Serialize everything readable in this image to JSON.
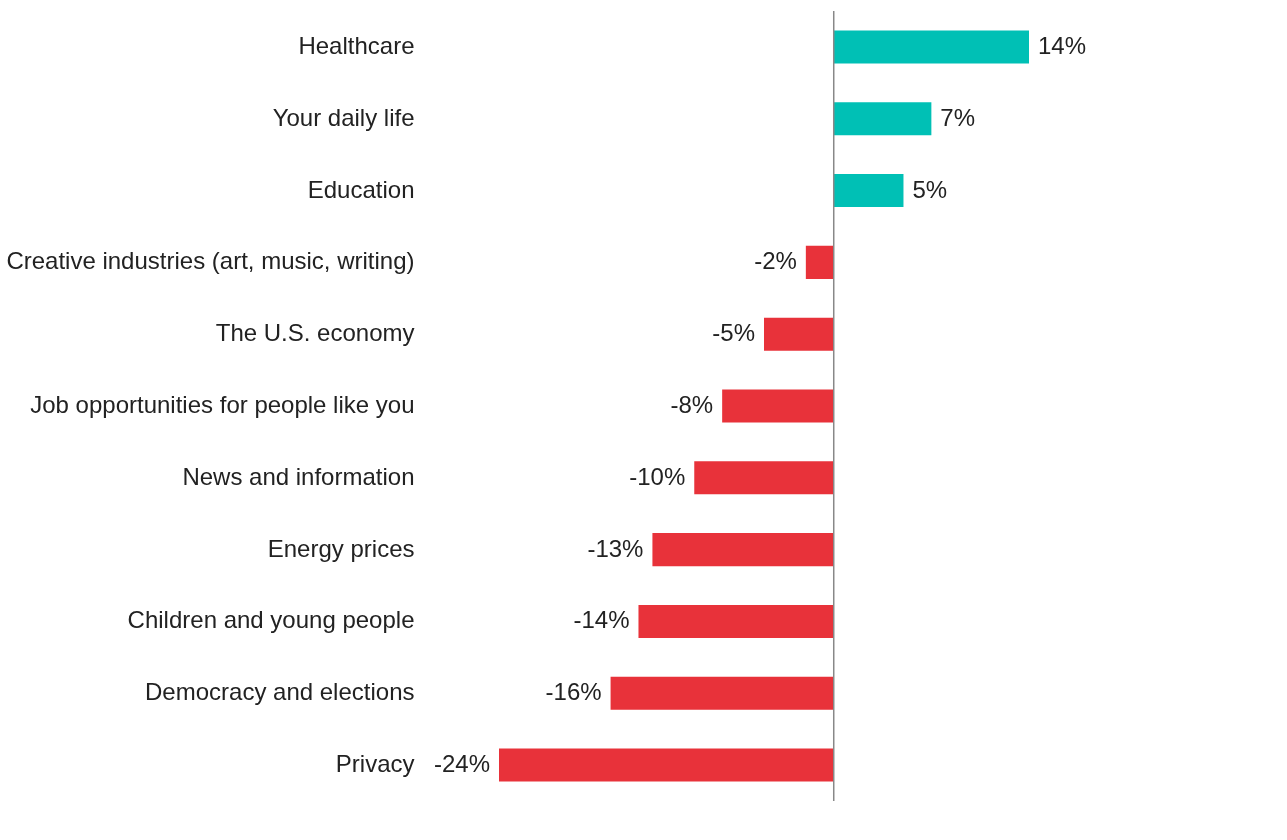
{
  "chart_data": {
    "type": "bar",
    "orientation": "horizontal",
    "categories": [
      "Healthcare",
      "Your daily life",
      "Education",
      "Creative industries (art, music, writing)",
      "The U.S. economy",
      "Job opportunities for people like you",
      "News and information",
      "Energy prices",
      "Children and young people",
      "Democracy and elections",
      "Privacy"
    ],
    "values": [
      14,
      7,
      5,
      -2,
      -5,
      -8,
      -10,
      -13,
      -14,
      -16,
      -24
    ],
    "colors": [
      "#00c0b5",
      "#00c0b5",
      "#00c0b5",
      "#e8323a",
      "#e8323a",
      "#e8323a",
      "#e8323a",
      "#e8323a",
      "#e8323a",
      "#e8323a",
      "#e8323a"
    ],
    "value_labels": [
      "14%",
      "7%",
      "5%",
      "-2%",
      "-5%",
      "-8%",
      "-10%",
      "-13%",
      "-14%",
      "-16%",
      "-24%"
    ],
    "tick_labels": "y"
  }
}
